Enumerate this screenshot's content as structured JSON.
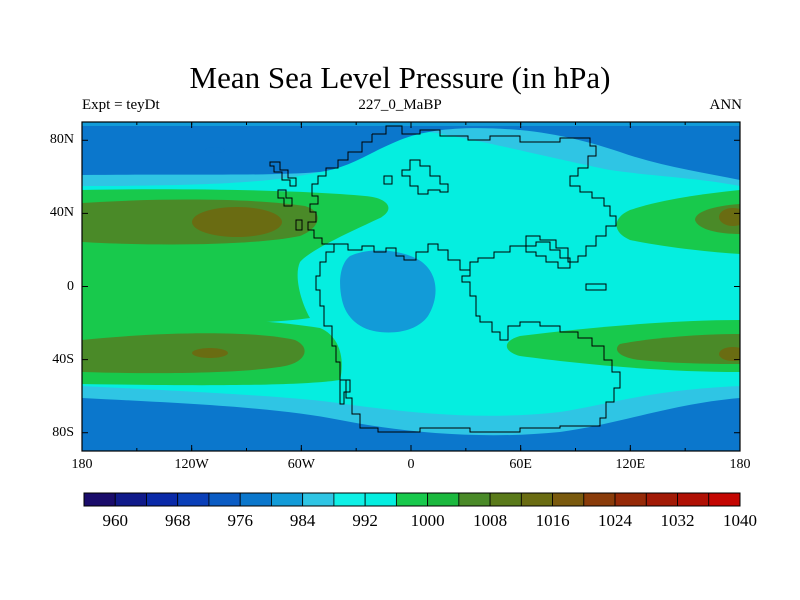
{
  "title": "Mean Sea Level Pressure (in hPa)",
  "left_subtitle": "Expt = teyDt",
  "center_subtitle": "227_0_MaBP",
  "right_subtitle": "ANN",
  "lat_labels": [
    "80N",
    "40N",
    "0",
    "40S",
    "80S"
  ],
  "lon_labels": [
    "180",
    "120W",
    "60W",
    "0",
    "60E",
    "120E",
    "180"
  ],
  "colorbar": {
    "labels": [
      "960",
      "968",
      "976",
      "984",
      "992",
      "1000",
      "1008",
      "1016",
      "1024",
      "1032",
      "1040"
    ],
    "colors": [
      "#1a0c6b",
      "#101a8a",
      "#0a2aa8",
      "#0a3fb8",
      "#0b5cc4",
      "#0b77cc",
      "#129bd8",
      "#2fc5e4",
      "#0ff0e6",
      "#05eee0",
      "#18c94c",
      "#1bb83e",
      "#4a8a28",
      "#5a7a1a",
      "#6a6c12",
      "#7a5a0e",
      "#8a3c0a",
      "#962a08",
      "#a21a06",
      "#b01004",
      "#c40602"
    ]
  },
  "fill_colors": {
    "ocean_deep": "#0b77cc",
    "ocean_mid": "#129bd8",
    "cyan": "#05eee0",
    "light_blue": "#2fc5e4",
    "green": "#18c94c",
    "dark_green": "#4a8a28",
    "olive": "#6a6c12"
  }
}
